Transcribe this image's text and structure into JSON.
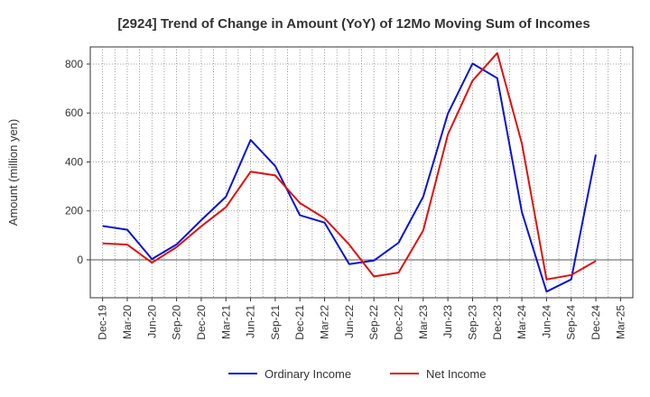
{
  "chart_data": {
    "type": "line",
    "title": "[2924]  Trend of Change in Amount (YoY) of 12Mo Moving Sum of Incomes",
    "xlabel": "",
    "ylabel": "Amount (million yen)",
    "categories": [
      "Dec-19",
      "Mar-20",
      "Jun-20",
      "Sep-20",
      "Dec-20",
      "Mar-21",
      "Jun-21",
      "Sep-21",
      "Dec-21",
      "Mar-22",
      "Jun-22",
      "Sep-22",
      "Dec-22",
      "Mar-23",
      "Jun-23",
      "Sep-23",
      "Dec-23",
      "Mar-24",
      "Jun-24",
      "Sep-24",
      "Dec-24",
      "Mar-25"
    ],
    "y_ticks": [
      0,
      200,
      400,
      600,
      800
    ],
    "ylim": [
      -155,
      870
    ],
    "grid": true,
    "legend_position": "bottom",
    "series": [
      {
        "name": "Ordinary Income",
        "color": "#0a14d2",
        "values": [
          138,
          123,
          3,
          63,
          162,
          258,
          490,
          383,
          182,
          152,
          -18,
          -3,
          70,
          258,
          597,
          802,
          742,
          195,
          -130,
          -80,
          430,
          null
        ]
      },
      {
        "name": "Net Income",
        "color": "#e01010",
        "values": [
          67,
          62,
          -12,
          52,
          137,
          215,
          360,
          345,
          232,
          170,
          62,
          -68,
          -52,
          120,
          512,
          732,
          845,
          475,
          -80,
          -62,
          -5,
          null
        ]
      }
    ]
  }
}
